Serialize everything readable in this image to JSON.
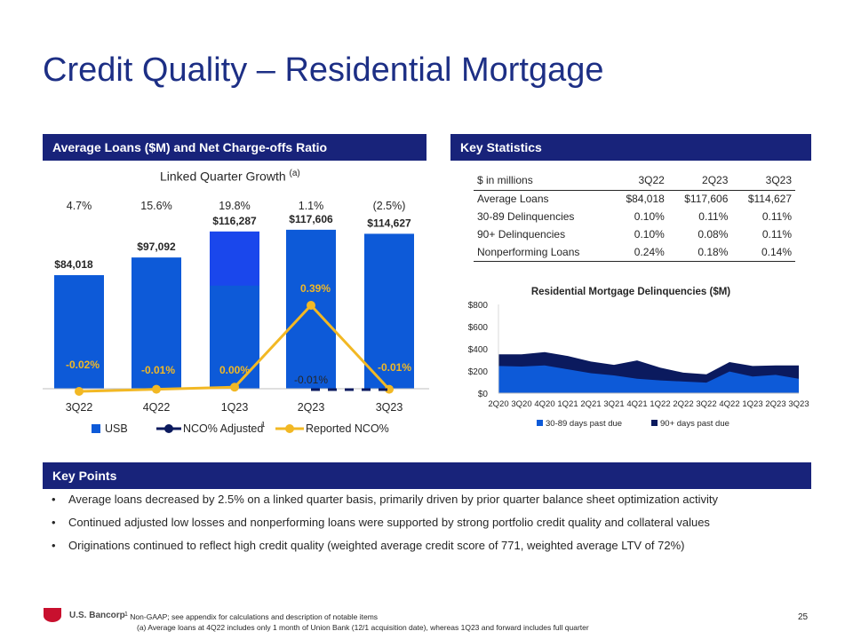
{
  "title": "Credit Quality – Residential Mortgage",
  "sections": {
    "left": "Average Loans ($M) and Net Charge-offs Ratio",
    "right": "Key Statistics",
    "points": "Key Points"
  },
  "lqg": {
    "label": "Linked Quarter Growth",
    "note": "(a)"
  },
  "colors": {
    "navy": "#18237a",
    "usb_blue": "#0d5ad8",
    "usb_top": "#1d44f0",
    "gold": "#f2b824",
    "dark_navy": "#0b1a5e"
  },
  "chart_data": [
    {
      "type": "bar",
      "title": "Average Loans ($M) and Net Charge-offs Ratio",
      "categories": [
        "3Q22",
        "4Q22",
        "1Q23",
        "2Q23",
        "3Q23"
      ],
      "series": [
        {
          "name": "USB",
          "values": [
            84018,
            97092,
            116287,
            117606,
            114627
          ]
        },
        {
          "name": "NCO% Adjusted",
          "values": [
            null,
            null,
            null,
            -0.01,
            -0.01
          ]
        },
        {
          "name": "Reported NCO%",
          "values": [
            -0.02,
            -0.01,
            0.0,
            0.39,
            -0.01
          ]
        }
      ],
      "bar_labels": [
        "$84,018",
        "$97,092",
        "$116,287",
        "$117,606",
        "$114,627"
      ],
      "nco_labels": [
        "-0.02%",
        "-0.01%",
        "0.00%",
        "0.39%",
        "-0.01%"
      ],
      "adjusted_label": "-0.01%",
      "growth_labels": [
        "4.7%",
        "15.6%",
        "19.8%",
        "1.1%",
        "(2.5%)"
      ],
      "legend": [
        "USB",
        "NCO% Adjusted",
        "Reported NCO%"
      ],
      "legend_note": "1",
      "ylim": [
        0,
        130000
      ]
    },
    {
      "type": "area",
      "title": "Residential Mortgage Delinquencies ($M)",
      "categories": [
        "2Q20",
        "3Q20",
        "4Q20",
        "1Q21",
        "2Q21",
        "3Q21",
        "4Q21",
        "1Q22",
        "2Q22",
        "3Q22",
        "4Q22",
        "1Q23",
        "2Q23",
        "3Q23"
      ],
      "series": [
        {
          "name": "30-89 days past due",
          "values": [
            245,
            240,
            250,
            215,
            180,
            160,
            130,
            115,
            105,
            95,
            195,
            150,
            165,
            130
          ]
        },
        {
          "name": "90+ days past due",
          "values": [
            105,
            110,
            120,
            120,
            105,
            95,
            165,
            115,
            80,
            75,
            85,
            95,
            85,
            120
          ]
        }
      ],
      "y_ticks": [
        "$0",
        "$200",
        "$400",
        "$600",
        "$800"
      ],
      "ylim": [
        0,
        800
      ]
    }
  ],
  "key_stats": {
    "header": [
      "$ in millions",
      "3Q22",
      "2Q23",
      "3Q23"
    ],
    "rows": [
      [
        "Average Loans",
        "$84,018",
        "$117,606",
        "$114,627"
      ],
      [
        "30-89 Delinquencies",
        "0.10%",
        "0.11%",
        "0.11%"
      ],
      [
        "90+ Delinquencies",
        "0.10%",
        "0.08%",
        "0.11%"
      ],
      [
        "Nonperforming Loans",
        "0.24%",
        "0.18%",
        "0.14%"
      ]
    ]
  },
  "key_points": [
    "Average loans decreased by 2.5% on a linked quarter basis, primarily driven by prior quarter balance sheet optimization activity",
    "Continued adjusted low losses and nonperforming loans were supported by strong portfolio credit quality and collateral values",
    "Originations continued to reflect high credit quality (weighted average credit score of 771, weighted average LTV of 72%)"
  ],
  "bullet": "•",
  "footer": {
    "logo": "U.S. Bancorp",
    "note1_sup": "1",
    "note1": "Non-GAAP; see appendix for calculations and description of notable items",
    "note2": "(a) Average loans at 4Q22 includes only 1 month of Union Bank (12/1 acquisition date), whereas 1Q23 and forward includes full quarter",
    "page": "25"
  }
}
